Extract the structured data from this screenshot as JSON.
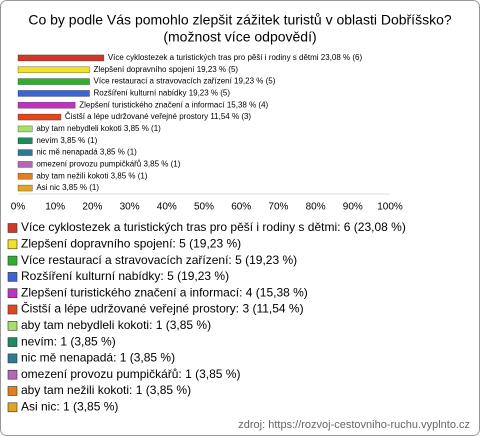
{
  "chart_data": {
    "type": "bar",
    "orientation": "horizontal",
    "title": "Co by podle Vás pomohlo zlepšit zážitek turistů v oblasti Dobříšsko?",
    "subtitle": "(možnost více odpovědí)",
    "values": [
      23.08,
      19.23,
      19.23,
      19.23,
      15.38,
      11.54,
      3.85,
      3.85,
      3.85,
      3.85,
      3.85,
      3.85
    ],
    "value_labels": [
      "Více cyklostezek a turistických tras pro pěší i rodiny s dětmi 23,08 % (6)",
      "Zlepšení dopravního spojení 19,23 % (5)",
      "Více restaurací a stravovacích zařízení 19,23 % (5)",
      "Rozšíření kulturní nabídky 19,23 % (5)",
      "Zlepšení turistického značení a informací 15,38 % (4)",
      "Čistší a lépe udržované veřejné prostory 11,54 % (3)",
      "aby tam nebydleli kokoti 3,85 % (1)",
      "nevím 3,85 % (1)",
      "nic mě nenapadá 3,85 % (1)",
      "omezení provozu pumpičkářů 3,85 % (1)",
      "aby tam nežili kokoti 3,85 % (1)",
      "Asi nic 3,85 % (1)"
    ],
    "legend_labels": [
      "Více cyklostezek a turistických tras pro pěší i rodiny s dětmi: 6 (23,08 %)",
      "Zlepšení dopravního spojení: 5 (19,23 %)",
      "Více restaurací a stravovacích zařízení: 5 (19,23 %)",
      "Rozšíření kulturní nabídky: 5 (19,23 %)",
      "Zlepšení turistického značení a informací: 4 (15,38 %)",
      "Čistší a lépe udržované veřejné prostory: 3 (11,54 %)",
      "aby tam nebydleli kokoti: 1 (3,85 %)",
      "nevím: 1 (3,85 %)",
      "nic mě nenapadá: 1 (3,85 %)",
      "omezení provozu pumpičkářů: 1 (3,85 %)",
      "aby tam nežili kokoti: 1 (3,85 %)",
      "Asi nic: 1 (3,85 %)"
    ],
    "colors": [
      "#d0392a",
      "#f2e12c",
      "#2fae2f",
      "#3e63d3",
      "#c232c2",
      "#e2461f",
      "#a6e06a",
      "#1f8a5e",
      "#2f7a92",
      "#b566b5",
      "#e27f22",
      "#e0a524"
    ],
    "xlim": [
      0,
      100
    ],
    "xticks": [
      {
        "value": 0,
        "label": "0%"
      },
      {
        "value": 10,
        "label": "10%"
      },
      {
        "value": 20,
        "label": "20%"
      },
      {
        "value": 30,
        "label": "30%"
      },
      {
        "value": 40,
        "label": "40%"
      },
      {
        "value": 50,
        "label": "50%"
      },
      {
        "value": 60,
        "label": "60%"
      },
      {
        "value": 70,
        "label": "70%"
      },
      {
        "value": 80,
        "label": "80%"
      },
      {
        "value": 90,
        "label": "90%"
      },
      {
        "value": 100,
        "label": "100%"
      }
    ],
    "grid": false,
    "source": "zdroj: https://rozvoj-cestovniho-ruchu.vyplnto.cz"
  }
}
